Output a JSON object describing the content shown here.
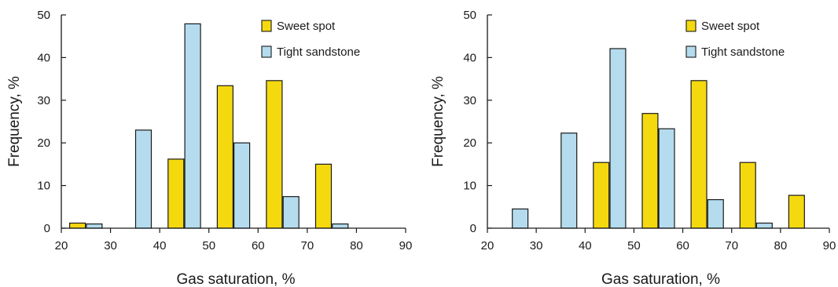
{
  "colors": {
    "sweet_spot": "#f5d90f",
    "tight_sandstone": "#b4dcee",
    "stroke": "#1a1a1a"
  },
  "chart_data": [
    {
      "type": "bar",
      "xlabel": "Gas saturation, %",
      "ylabel": "Frequency, %",
      "xlim": [
        20,
        90
      ],
      "ylim": [
        0,
        50
      ],
      "x_ticks": [
        20,
        30,
        40,
        50,
        60,
        70,
        80,
        90
      ],
      "y_ticks": [
        0,
        10,
        20,
        30,
        40,
        50
      ],
      "grid": false,
      "legend_position": "top-right",
      "series": [
        {
          "name": "Sweet spot",
          "color": "#f5d90f",
          "x": [
            25,
            45,
            55,
            65,
            75
          ],
          "values": [
            1.2,
            16.2,
            33.4,
            34.6,
            15.0
          ]
        },
        {
          "name": "Tight sandstone",
          "color": "#b4dcee",
          "x": [
            25,
            35,
            45,
            55,
            65,
            75
          ],
          "values": [
            1.0,
            23.0,
            47.9,
            20.0,
            7.4,
            1.0
          ]
        }
      ]
    },
    {
      "type": "bar",
      "xlabel": "Gas saturation, %",
      "ylabel": "Frequency, %",
      "xlim": [
        20,
        90
      ],
      "ylim": [
        0,
        50
      ],
      "x_ticks": [
        20,
        30,
        40,
        50,
        60,
        70,
        80,
        90
      ],
      "y_ticks": [
        0,
        10,
        20,
        30,
        40,
        50
      ],
      "grid": false,
      "legend_position": "top-right",
      "series": [
        {
          "name": "Sweet spot",
          "color": "#f5d90f",
          "x": [
            45,
            55,
            65,
            75,
            85
          ],
          "values": [
            15.4,
            26.9,
            34.6,
            15.4,
            7.7
          ]
        },
        {
          "name": "Tight sandstone",
          "color": "#b4dcee",
          "x": [
            25,
            35,
            45,
            55,
            65,
            75
          ],
          "values": [
            4.5,
            22.3,
            42.1,
            23.3,
            6.7,
            1.2
          ]
        }
      ]
    }
  ]
}
